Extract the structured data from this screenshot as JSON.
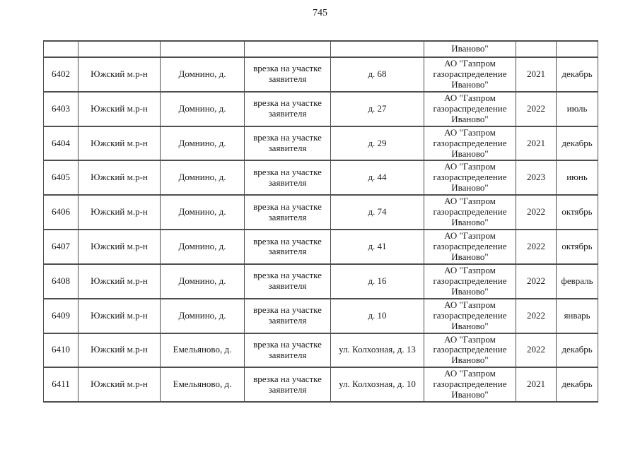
{
  "page": {
    "number": "745"
  },
  "colors": {
    "ink": "#1a1a1a",
    "border": "#4f4f4f",
    "background": "#ffffff"
  },
  "table": {
    "continuation_row": {
      "organization": "Иваново\""
    },
    "rows": [
      {
        "id": "6402",
        "district": "Южский м.р-н",
        "settlement": "Домнино, д.",
        "work_type": "врезка на участке заявителя",
        "address": "д. 68",
        "organization": "АО \"Газпром газораспределение Иваново\"",
        "year": "2021",
        "month": "декабрь"
      },
      {
        "id": "6403",
        "district": "Южский м.р-н",
        "settlement": "Домнино, д.",
        "work_type": "врезка на участке заявителя",
        "address": "д. 27",
        "organization": "АО \"Газпром газораспределение Иваново\"",
        "year": "2022",
        "month": "июль"
      },
      {
        "id": "6404",
        "district": "Южский м.р-н",
        "settlement": "Домнино, д.",
        "work_type": "врезка на участке заявителя",
        "address": "д. 29",
        "organization": "АО \"Газпром газораспределение Иваново\"",
        "year": "2021",
        "month": "декабрь"
      },
      {
        "id": "6405",
        "district": "Южский м.р-н",
        "settlement": "Домнино, д.",
        "work_type": "врезка на участке заявителя",
        "address": "д. 44",
        "organization": "АО \"Газпром газораспределение Иваново\"",
        "year": "2023",
        "month": "июнь"
      },
      {
        "id": "6406",
        "district": "Южский м.р-н",
        "settlement": "Домнино, д.",
        "work_type": "врезка на участке заявителя",
        "address": "д. 74",
        "organization": "АО \"Газпром газораспределение Иваново\"",
        "year": "2022",
        "month": "октябрь"
      },
      {
        "id": "6407",
        "district": "Южский м.р-н",
        "settlement": "Домнино, д.",
        "work_type": "врезка на участке заявителя",
        "address": "д. 41",
        "organization": "АО \"Газпром газораспределение Иваново\"",
        "year": "2022",
        "month": "октябрь"
      },
      {
        "id": "6408",
        "district": "Южский м.р-н",
        "settlement": "Домнино, д.",
        "work_type": "врезка на участке заявителя",
        "address": "д. 16",
        "organization": "АО \"Газпром газораспределение Иваново\"",
        "year": "2022",
        "month": "февраль"
      },
      {
        "id": "6409",
        "district": "Южский м.р-н",
        "settlement": "Домнино, д.",
        "work_type": "врезка на участке заявителя",
        "address": "д. 10",
        "organization": "АО \"Газпром газораспределение Иваново\"",
        "year": "2022",
        "month": "январь"
      },
      {
        "id": "6410",
        "district": "Южский м.р-н",
        "settlement": "Емельяново, д.",
        "work_type": "врезка на участке заявителя",
        "address": "ул. Колхозная, д. 13",
        "organization": "АО \"Газпром газораспределение Иваново\"",
        "year": "2022",
        "month": "декабрь"
      },
      {
        "id": "6411",
        "district": "Южский м.р-н",
        "settlement": "Емельяново, д.",
        "work_type": "врезка на участке заявителя",
        "address": "ул. Колхозная, д. 10",
        "organization": "АО \"Газпром газораспределение Иваново\"",
        "year": "2021",
        "month": "декабрь"
      }
    ]
  }
}
